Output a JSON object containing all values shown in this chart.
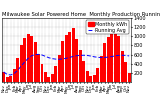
{
  "title": "Milwaukee Solar Powered Home  Monthly Production Running Average",
  "title_fontsize": 3.8,
  "bar_color": "#ff0000",
  "avg_color": "#0000ff",
  "bg_color": "#ffffff",
  "plot_bg": "#ffffff",
  "grid_color": "#888888",
  "values": [
    220,
    110,
    130,
    280,
    530,
    820,
    960,
    1050,
    1010,
    870,
    620,
    400,
    210,
    120,
    180,
    340,
    590,
    900,
    1020,
    1100,
    1180,
    950,
    700,
    460,
    250,
    130,
    150,
    310,
    560,
    860,
    980,
    1070,
    1200,
    1010,
    680,
    430,
    190
  ],
  "running_avg": [
    220,
    165,
    153,
    185,
    254,
    348,
    436,
    515,
    575,
    600,
    604,
    591,
    560,
    530,
    510,
    500,
    498,
    505,
    520,
    539,
    562,
    575,
    583,
    585,
    581,
    567,
    551,
    540,
    535,
    538,
    545,
    556,
    572,
    583,
    585,
    582,
    570
  ],
  "x_labels": [
    "Nov",
    "Dec",
    "Jan",
    "Feb",
    "Mar",
    "Apr",
    "May",
    "Jun",
    "Jul",
    "Aug",
    "Sep",
    "Oct",
    "Nov",
    "Dec",
    "Jan",
    "Feb",
    "Mar",
    "Apr",
    "May",
    "Jun",
    "Jul",
    "Aug",
    "Sep",
    "Oct",
    "Nov",
    "Dec",
    "Jan",
    "Feb",
    "Mar",
    "Apr",
    "May",
    "Jun",
    "Jul",
    "Aug",
    "Sep",
    "Oct",
    "Nov"
  ],
  "ylim": [
    0,
    1400
  ],
  "yticks": [
    200,
    400,
    600,
    800,
    1000,
    1200,
    1400
  ],
  "tick_fontsize": 3.5,
  "xlabel_fontsize": 3.0,
  "legend_labels": [
    "Monthly kWh",
    "Running Avg"
  ],
  "legend_fontsize": 3.5,
  "right_axis": true
}
